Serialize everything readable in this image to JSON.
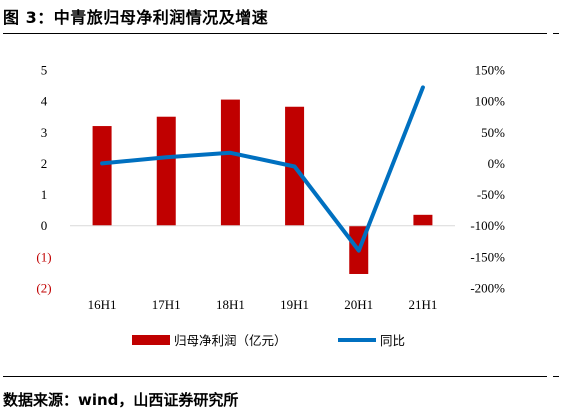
{
  "figure_title": "图 3：中青旅归母净利润情况及增速",
  "source_note": "数据来源：wind，山西证券研究所",
  "colors": {
    "bar": "#C00000",
    "line": "#0070C0",
    "negative_tick": "#C00000",
    "axis": "#D9D9D9"
  },
  "chart_data": {
    "type": "bar+line",
    "categories": [
      "16H1",
      "17H1",
      "18H1",
      "19H1",
      "20H1",
      "21H1"
    ],
    "series": [
      {
        "name": "归母净利润（亿元）",
        "type": "bar",
        "axis": "left",
        "values": [
          3.2,
          3.5,
          4.05,
          3.82,
          -1.55,
          0.35
        ]
      },
      {
        "name": "同比",
        "type": "line",
        "axis": "right",
        "values": [
          0,
          10,
          17,
          -5,
          -140,
          122
        ]
      }
    ],
    "left_axis": {
      "ylim": [
        -2,
        5
      ],
      "ticks": [
        "5",
        "4",
        "3",
        "2",
        "1",
        "0",
        "(1)",
        "(2)"
      ]
    },
    "right_axis": {
      "ylim": [
        -200,
        150
      ],
      "ticks": [
        "150%",
        "100%",
        "50%",
        "0%",
        "-50%",
        "-100%",
        "-150%",
        "-200%"
      ]
    },
    "grid": false,
    "legend": "bottom"
  }
}
